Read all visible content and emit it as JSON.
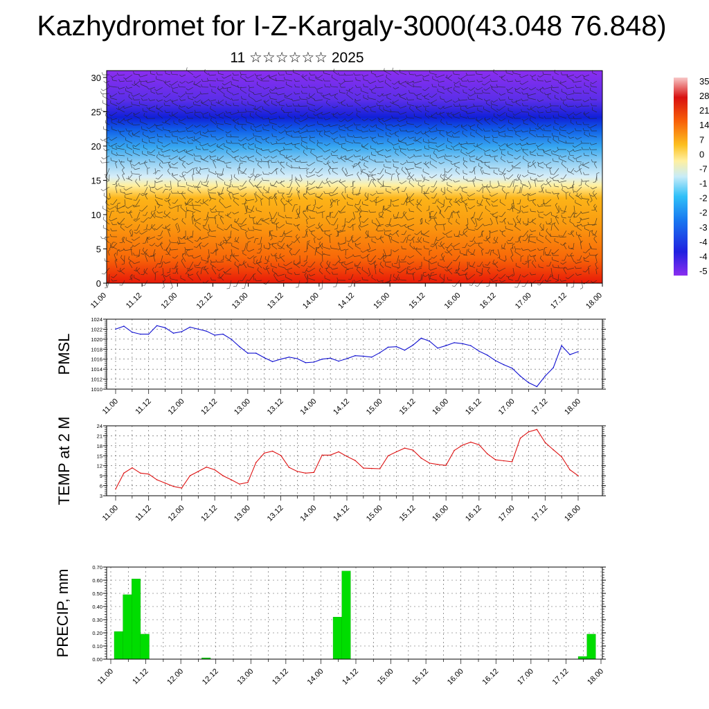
{
  "title": "Kazhydromet for I-Z-Kargaly-3000(43.048 76.848)",
  "subtitle": "11 ☆☆☆☆☆☆ 2025",
  "x_tick_labels": [
    "11.00",
    "11.12",
    "12.00",
    "12.12",
    "13.00",
    "13.12",
    "14.00",
    "14.12",
    "15.00",
    "15.12",
    "16.00",
    "16.12",
    "17.00",
    "17.12",
    "18.00"
  ],
  "colors": {
    "pmsl_line": "#1010d0",
    "temp_line": "#dd1010",
    "precip_bar": "#00dd00",
    "grid": "#555555"
  },
  "chart_data": [
    {
      "type": "heatmap",
      "id": "cross-section",
      "title": "",
      "xlabel": "",
      "ylabel": "",
      "ylim": [
        0,
        31
      ],
      "y_ticks": [
        "0",
        "5",
        "10",
        "15",
        "20",
        "25",
        "30"
      ],
      "overlay": "wind barbs",
      "colorbar_labels": [
        "35",
        "28",
        "21",
        "14",
        "7",
        "0",
        "-7",
        "-1",
        "-2",
        "-2",
        "-3",
        "-4",
        "-4",
        "-5"
      ]
    },
    {
      "type": "line",
      "id": "pmsl",
      "ylabel": "PMSL",
      "ylim": [
        1010,
        1024
      ],
      "y_ticks": [
        "1010",
        "1012",
        "1014",
        "1016",
        "1018",
        "1020",
        "1022",
        "1024"
      ],
      "values": [
        1022.0,
        1022.6,
        1021.4,
        1021.0,
        1021.0,
        1022.7,
        1022.3,
        1021.2,
        1021.5,
        1022.4,
        1022.0,
        1021.6,
        1020.8,
        1021.0,
        1020.0,
        1018.5,
        1017.2,
        1017.2,
        1016.3,
        1015.5,
        1016.0,
        1016.4,
        1016.1,
        1015.3,
        1015.4,
        1016.0,
        1016.2,
        1015.6,
        1016.1,
        1016.7,
        1016.6,
        1016.4,
        1017.3,
        1018.4,
        1018.5,
        1017.8,
        1018.8,
        1020.2,
        1019.6,
        1018.2,
        1018.7,
        1019.3,
        1019.1,
        1018.7,
        1017.6,
        1016.8,
        1015.7,
        1014.9,
        1014.2,
        1012.6,
        1011.3,
        1010.5,
        1012.6,
        1014.3,
        1018.7,
        1016.9,
        1017.5
      ]
    },
    {
      "type": "line",
      "id": "temp",
      "ylabel": "TEMP at 2 M",
      "ylim": [
        3,
        24
      ],
      "y_ticks": [
        "3",
        "6",
        "9",
        "12",
        "15",
        "18",
        "21",
        "24"
      ],
      "values": [
        5.0,
        9.8,
        11.4,
        9.8,
        9.5,
        7.8,
        6.8,
        5.8,
        5.3,
        9.0,
        10.3,
        11.6,
        10.8,
        9.0,
        7.8,
        6.5,
        7.0,
        13.0,
        15.8,
        16.4,
        15.1,
        11.5,
        10.3,
        9.8,
        10.0,
        15.2,
        15.2,
        16.2,
        14.8,
        13.6,
        11.3,
        11.2,
        11.1,
        15.0,
        16.2,
        17.3,
        16.7,
        14.3,
        12.8,
        12.4,
        12.1,
        16.6,
        18.2,
        19.1,
        18.3,
        15.6,
        13.8,
        13.5,
        13.2,
        20.3,
        22.2,
        22.9,
        19.0,
        16.8,
        14.7,
        10.8,
        9.0
      ]
    },
    {
      "type": "bar",
      "id": "precip",
      "ylabel": "PRECIP, mm",
      "ylim": [
        0,
        0.7
      ],
      "y_ticks": [
        "0.00",
        "0.10",
        "0.20",
        "0.30",
        "0.40",
        "0.50",
        "0.60",
        "0.70"
      ],
      "values": [
        0,
        0.21,
        0.49,
        0.61,
        0.19,
        0,
        0,
        0,
        0,
        0,
        0,
        0.01,
        0,
        0,
        0,
        0,
        0,
        0,
        0,
        0,
        0,
        0,
        0,
        0,
        0,
        0,
        0.32,
        0.67,
        0,
        0,
        0,
        0,
        0,
        0,
        0,
        0,
        0,
        0,
        0,
        0,
        0,
        0,
        0,
        0,
        0,
        0,
        0,
        0,
        0,
        0,
        0,
        0,
        0,
        0,
        0.02,
        0.19,
        0
      ]
    }
  ]
}
